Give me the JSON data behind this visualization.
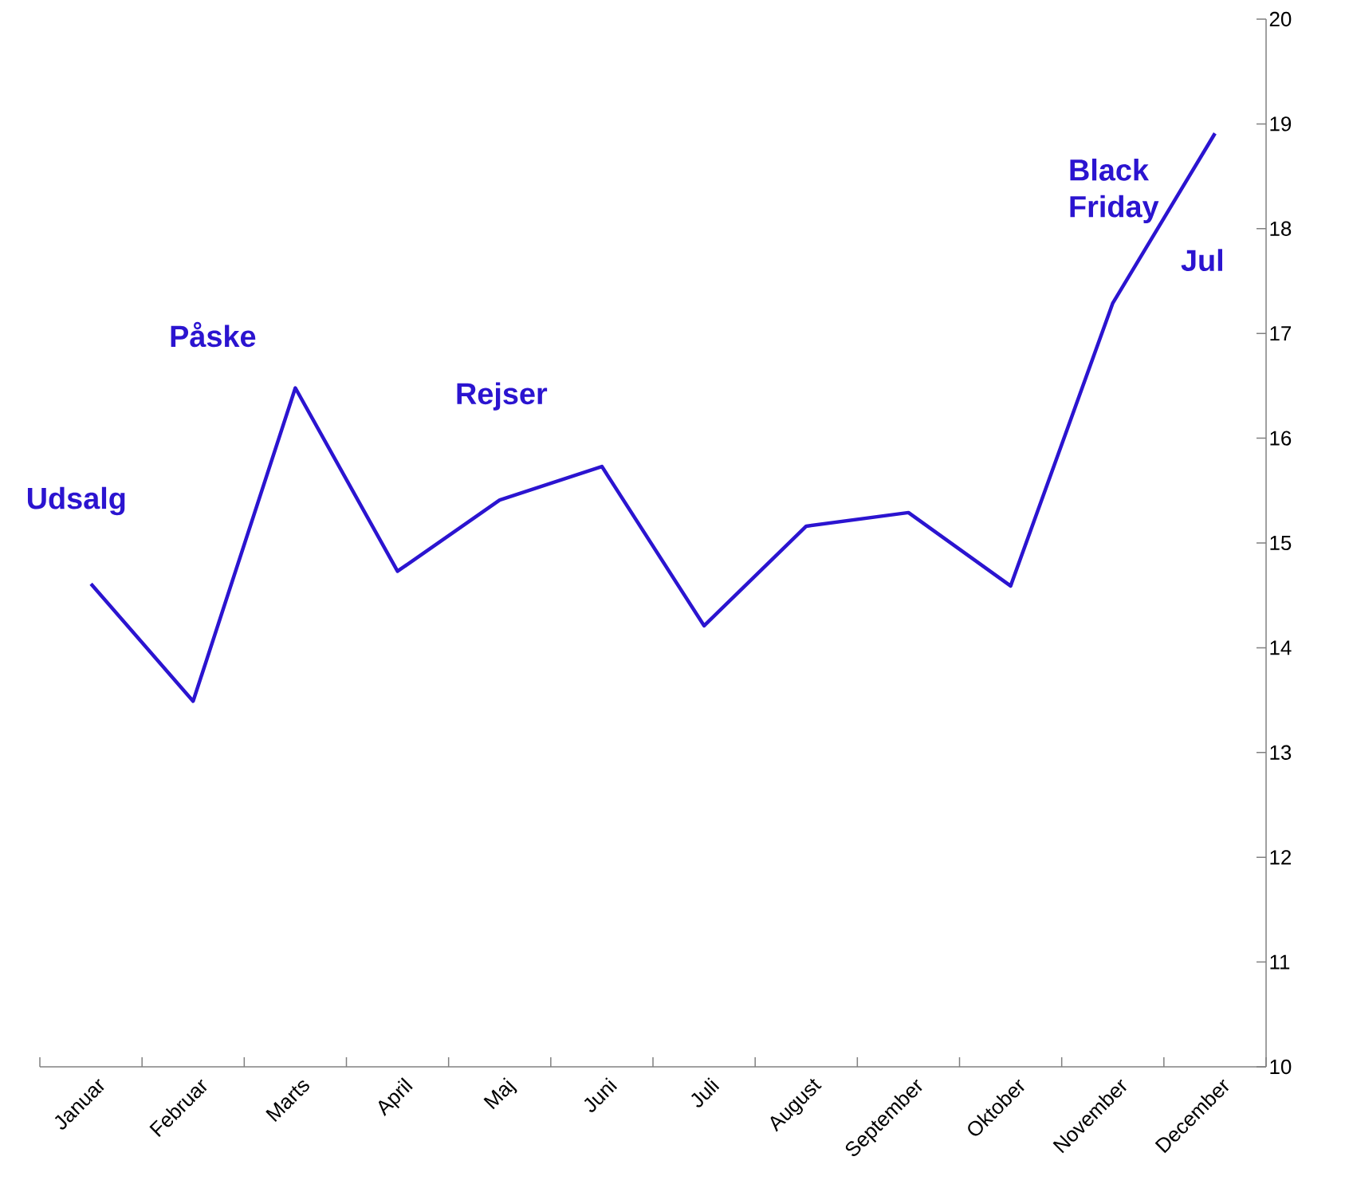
{
  "chart_data": {
    "type": "line",
    "categories": [
      "Januar",
      "Februar",
      "Marts",
      "April",
      "Maj",
      "Juni",
      "Juli",
      "August",
      "September",
      "Oktober",
      "November",
      "December"
    ],
    "values": [
      14.61,
      13.49,
      16.48,
      14.73,
      15.41,
      15.73,
      14.21,
      15.16,
      15.29,
      14.59,
      17.29,
      18.91
    ],
    "color": "#2b14d0",
    "ylim": [
      10,
      20
    ],
    "yticks": [
      10,
      11,
      12,
      13,
      14,
      15,
      16,
      17,
      18,
      19,
      20
    ],
    "grid": false,
    "marker": "none",
    "line_style": "solid",
    "annotations": [
      "Udsalg",
      "Påske",
      "Rejser",
      "Black Friday",
      "Jul"
    ]
  }
}
